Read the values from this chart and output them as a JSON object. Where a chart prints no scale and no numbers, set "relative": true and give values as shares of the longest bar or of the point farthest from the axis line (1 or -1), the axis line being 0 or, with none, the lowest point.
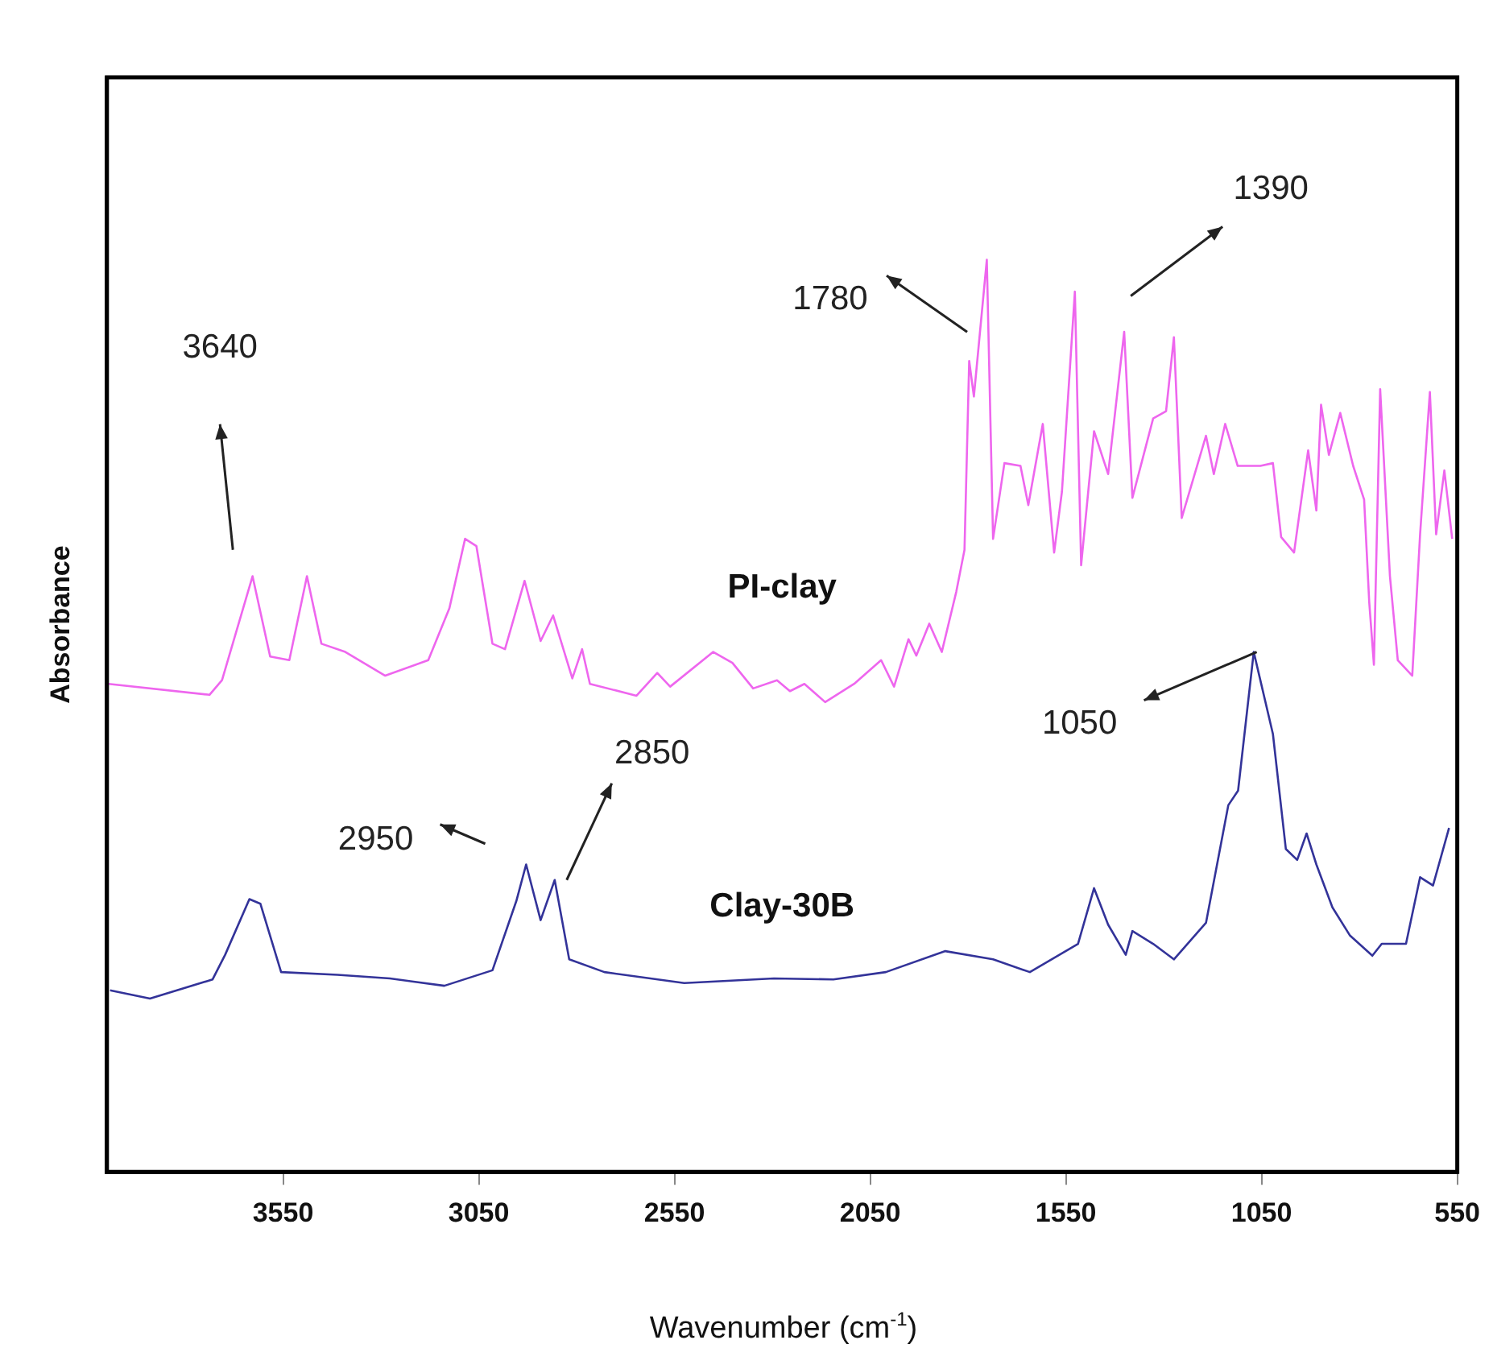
{
  "chart_data": {
    "type": "line",
    "relative": true,
    "xlabel": "Wavenumber (cm$^{-1}$)",
    "ylabel": "Absorbance",
    "xlim": [
      4000,
      550
    ],
    "xticks": [
      3550,
      3050,
      2550,
      2050,
      1550,
      1050,
      550
    ],
    "grid": false,
    "legend": false,
    "marker": "none",
    "line_style": "solid",
    "series": [
      {
        "name": "PI-clay",
        "color": "#ee66ee",
        "x": [
          3996,
          3738,
          3706,
          3628,
          3583,
          3534,
          3489,
          3452,
          3391,
          3289,
          3179,
          3125,
          3085,
          3056,
          3015,
          2983,
          2933,
          2892,
          2860,
          2811,
          2786,
          2766,
          2647,
          2594,
          2561,
          2451,
          2402,
          2349,
          2288,
          2255,
          2218,
          2165,
          2091,
          2022,
          1989,
          1952,
          1932,
          1899,
          1867,
          1830,
          1809,
          1797,
          1785,
          1752,
          1736,
          1707,
          1666,
          1646,
          1609,
          1580,
          1560,
          1527,
          1511,
          1478,
          1442,
          1401,
          1380,
          1327,
          1294,
          1274,
          1254,
          1192,
          1172,
          1143,
          1111,
          1053,
          1021,
          1000,
          967,
          931,
          910,
          898,
          878,
          849,
          816,
          788,
          775,
          763,
          747,
          722,
          702,
          665,
          645,
          620,
          604,
          583,
          563
        ],
        "values": [
          0.535,
          0.523,
          0.539,
          0.653,
          0.565,
          0.561,
          0.653,
          0.579,
          0.57,
          0.544,
          0.561,
          0.618,
          0.694,
          0.686,
          0.579,
          0.573,
          0.648,
          0.582,
          0.61,
          0.541,
          0.573,
          0.535,
          0.522,
          0.547,
          0.532,
          0.57,
          0.558,
          0.53,
          0.539,
          0.527,
          0.535,
          0.515,
          0.535,
          0.561,
          0.532,
          0.584,
          0.566,
          0.601,
          0.57,
          0.636,
          0.682,
          0.889,
          0.85,
          1.0,
          0.694,
          0.777,
          0.774,
          0.731,
          0.82,
          0.679,
          0.746,
          0.965,
          0.665,
          0.812,
          0.765,
          0.921,
          0.739,
          0.826,
          0.834,
          0.915,
          0.717,
          0.807,
          0.765,
          0.82,
          0.774,
          0.774,
          0.777,
          0.696,
          0.679,
          0.791,
          0.725,
          0.841,
          0.786,
          0.832,
          0.774,
          0.737,
          0.625,
          0.556,
          0.858,
          0.653,
          0.561,
          0.544,
          0.699,
          0.855,
          0.699,
          0.769,
          0.694
        ]
      },
      {
        "name": "Clay-30B",
        "color": "#333399",
        "x": [
          3992,
          3890,
          3730,
          3698,
          3636,
          3608,
          3555,
          3411,
          3277,
          3138,
          3015,
          2954,
          2929,
          2892,
          2856,
          2819,
          2729,
          2525,
          2296,
          2144,
          2010,
          1858,
          1736,
          1642,
          1519,
          1478,
          1442,
          1397,
          1380,
          1327,
          1274,
          1192,
          1135,
          1110,
          1070,
          1021,
          988,
          959,
          935,
          910,
          869,
          824,
          767,
          743,
          681,
          645,
          612,
          571
        ],
        "values": [
          0.199,
          0.19,
          0.211,
          0.238,
          0.299,
          0.294,
          0.219,
          0.216,
          0.212,
          0.204,
          0.221,
          0.297,
          0.337,
          0.276,
          0.32,
          0.233,
          0.219,
          0.207,
          0.212,
          0.211,
          0.219,
          0.242,
          0.233,
          0.219,
          0.25,
          0.311,
          0.271,
          0.238,
          0.264,
          0.25,
          0.233,
          0.273,
          0.402,
          0.418,
          0.57,
          0.48,
          0.354,
          0.342,
          0.371,
          0.337,
          0.29,
          0.259,
          0.237,
          0.25,
          0.25,
          0.323,
          0.314,
          0.377
        ]
      }
    ],
    "annotations": [
      "3640",
      "1780",
      "1390",
      "2950",
      {
        "text": "2850",
        "x": 2850,
        "y": 0.32
      },
      {
        "text": "1050",
        "x": 1050,
        "y": 0.57
      }
    ]
  }
}
